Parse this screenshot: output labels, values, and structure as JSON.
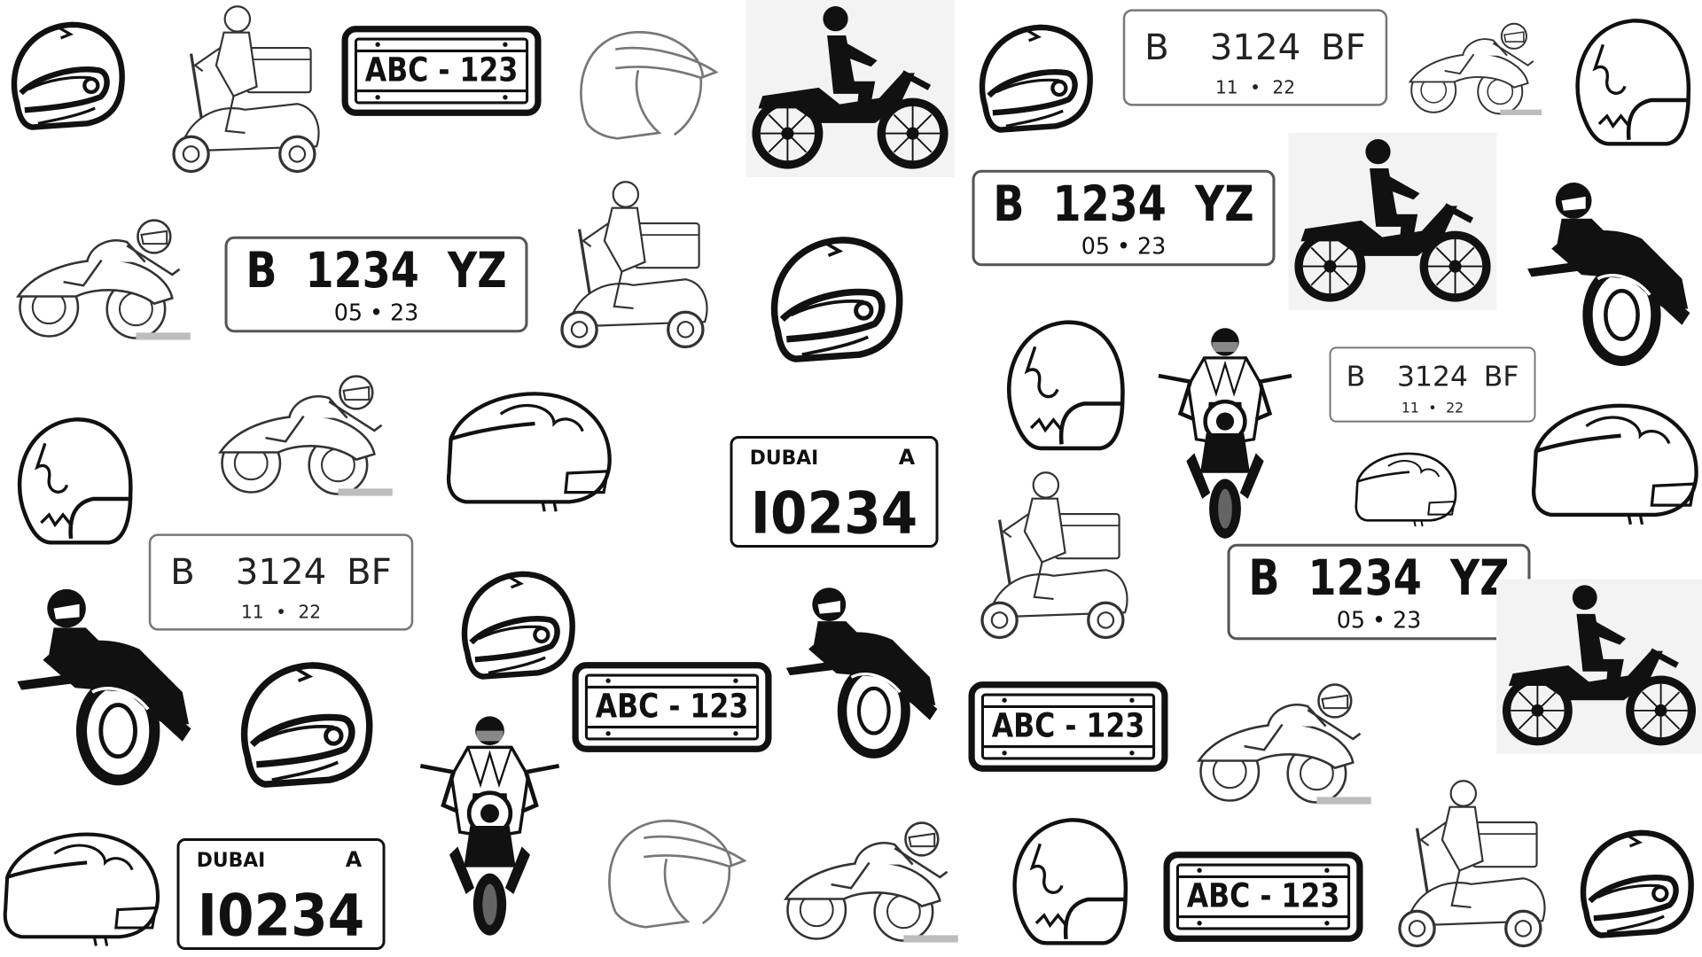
{
  "plates": {
    "abc": {
      "text": "ABC - 123"
    },
    "b1234": {
      "number": "B  1234  YZ",
      "date": "05 • 23"
    },
    "b3124": {
      "left": "B",
      "mid": "3124",
      "right": "BF",
      "date_left": "11",
      "date_dot": "•",
      "date_right": "22"
    },
    "dubai": {
      "emirate": "DUBAI",
      "code": "A",
      "number": "I0234"
    }
  },
  "icons": [
    "helmet-full-face",
    "helmet-open-face",
    "helmet-outline",
    "dirt-bike-rider",
    "sport-bike-rider",
    "delivery-scooter-rider",
    "cruiser-rider",
    "license-plate"
  ],
  "colors": {
    "ink": "#111111",
    "line": "#2a2a2a",
    "faint": "#9a9a9a",
    "background": "#ffffff"
  }
}
